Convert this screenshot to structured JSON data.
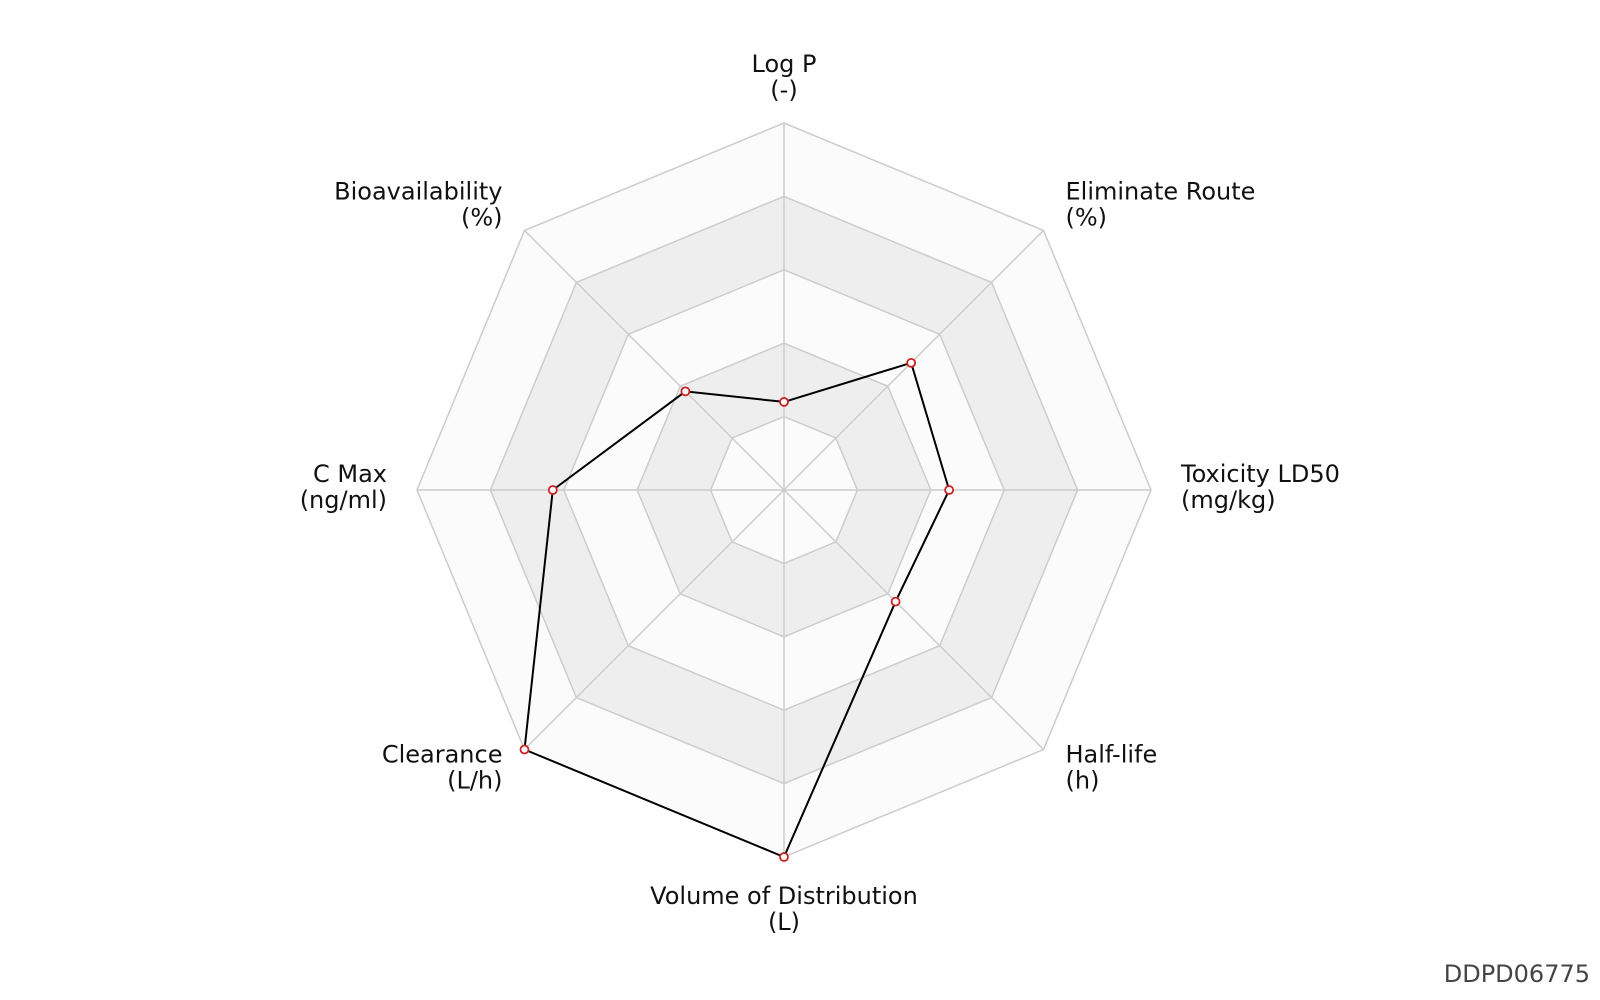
{
  "chart_data": {
    "type": "radar",
    "categories": [
      "Log P",
      "Eliminate Route",
      "Toxicity LD50",
      "Half-life",
      "Volume of Distribution",
      "Clearance",
      "C Max",
      "Bioavailability"
    ],
    "units": [
      "(-)",
      "(%)",
      "(mg/kg)",
      "(h)",
      "(L)",
      "(L/h)",
      "(ng/ml)",
      "(%)"
    ],
    "series": [
      {
        "color": "#000000",
        "marker_color": "#cc2222",
        "values": [
          0.24,
          0.49,
          0.45,
          0.43,
          1.0,
          1.0,
          0.63,
          0.38
        ]
      }
    ],
    "ylim": [
      0,
      1
    ],
    "yticks": [
      0.2,
      0.4,
      0.6,
      0.8,
      1.0
    ],
    "grid": true,
    "footer": "DDPD06775"
  }
}
